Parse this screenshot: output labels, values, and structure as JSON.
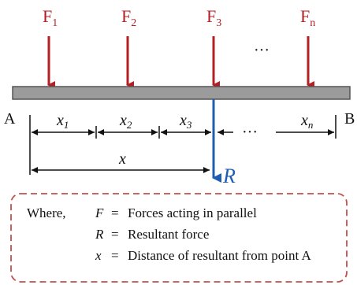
{
  "forces": [
    {
      "base": "F",
      "sub": "1"
    },
    {
      "base": "F",
      "sub": "2"
    },
    {
      "base": "F",
      "sub": "3"
    },
    {
      "base": "F",
      "sub": "n"
    }
  ],
  "ellipsis": "···",
  "points": {
    "left": "A",
    "right": "B"
  },
  "segments": [
    {
      "base": "x",
      "sub": "1"
    },
    {
      "base": "x",
      "sub": "2"
    },
    {
      "base": "x",
      "sub": "3"
    },
    {
      "base": "x",
      "sub": "n"
    }
  ],
  "distance_label": "x",
  "resultant_label": "R",
  "legend": {
    "where": "Where,",
    "rows": [
      {
        "var": "F",
        "eq": "=",
        "desc": "Forces acting in parallel"
      },
      {
        "var": "R",
        "eq": "=",
        "desc": "Resultant force"
      },
      {
        "var": "x",
        "eq": "=",
        "desc": "Distance of resultant from point A"
      }
    ]
  },
  "colors": {
    "force_arrow": "#b51f24",
    "resultant_arrow": "#1f5db3",
    "beam_fill": "#9b9b9b",
    "legend_border": "#c0504d"
  }
}
